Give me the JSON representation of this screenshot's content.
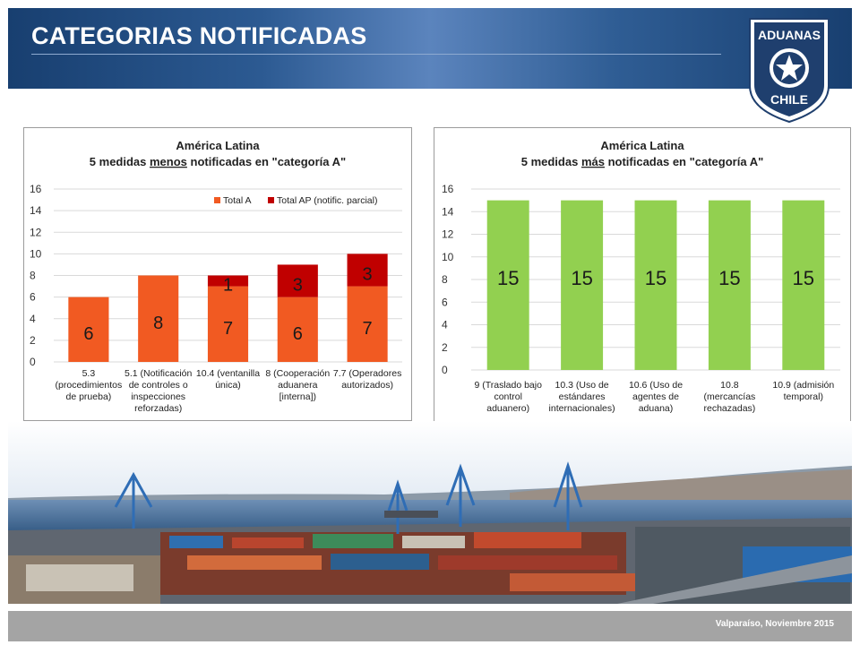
{
  "header": {
    "title": "CATEGORIAS NOTIFICADAS"
  },
  "logo": {
    "icon": "aduanas-chile-shield-icon",
    "line1": "ADUANAS",
    "line2": "CHILE"
  },
  "footer": {
    "text": "Valparaíso,  Noviembre 2015"
  },
  "colors": {
    "total_a": "#f15a22",
    "total_ap": "#c00000",
    "green": "#92d050",
    "header": "#1f4a80"
  },
  "chart_data": [
    {
      "type": "bar",
      "stacked": true,
      "title_line1": "América Latina",
      "title_line2_pre": "5 medidas ",
      "title_line2_em": "menos",
      "title_line2_post": " notificadas en \"categoría A\"",
      "categories": [
        [
          "5.3",
          "(procedimientos",
          "de prueba)"
        ],
        [
          "5.1 (Notificación",
          "de controles o",
          "inspecciones",
          "reforzadas)"
        ],
        [
          "10.4 (ventanilla",
          "única)"
        ],
        [
          "8 (Cooperación",
          "aduanera",
          "[interna])"
        ],
        [
          "7.7 (Operadores",
          "autorizados)"
        ]
      ],
      "series": [
        {
          "name": "Total A",
          "values": [
            6,
            8,
            7,
            6,
            7
          ],
          "color": "#f15a22"
        },
        {
          "name": "Total AP (notific. parcial)",
          "values": [
            0,
            0,
            1,
            3,
            3
          ],
          "color": "#c00000"
        }
      ],
      "ylim": [
        0,
        16
      ],
      "yticks": [
        0,
        2,
        4,
        6,
        8,
        10,
        12,
        14,
        16
      ],
      "grid": true,
      "legend": "top-right"
    },
    {
      "type": "bar",
      "title_line1": "América Latina",
      "title_line2_pre": "5 medidas ",
      "title_line2_em": "más",
      "title_line2_post": " notificadas en \"categoría A\"",
      "categories": [
        [
          "9 (Traslado bajo",
          "control",
          "aduanero)"
        ],
        [
          "10.3 (Uso de",
          "estándares",
          "internacionales)"
        ],
        [
          "10.6 (Uso de",
          "agentes de",
          "aduana)"
        ],
        [
          "10.8",
          "(mercancías",
          "rechazadas)"
        ],
        [
          "10.9 (admisión",
          "temporal)"
        ]
      ],
      "series": [
        {
          "values": [
            15,
            15,
            15,
            15,
            15
          ],
          "color": "#92d050"
        }
      ],
      "ylim": [
        0,
        16
      ],
      "yticks": [
        0,
        2,
        4,
        6,
        8,
        10,
        12,
        14,
        16
      ],
      "grid": true,
      "legend": "none"
    }
  ]
}
